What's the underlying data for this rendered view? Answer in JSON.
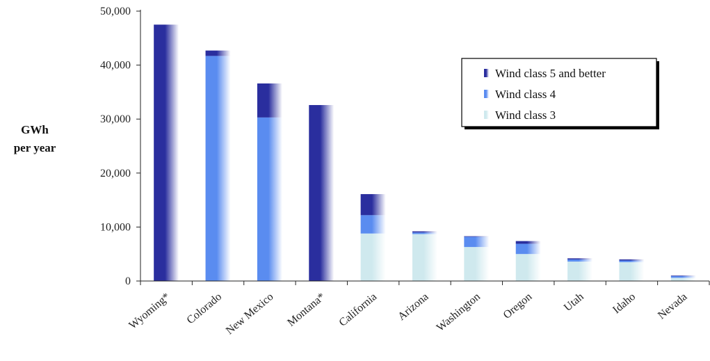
{
  "chart_data": {
    "type": "bar",
    "stacked": true,
    "ylabel_line1": "GWh",
    "ylabel_line2": "per year",
    "ylim": [
      0,
      50000
    ],
    "yticks": [
      "0",
      "10,000",
      "20,000",
      "30,000",
      "40,000",
      "50,000"
    ],
    "ytick_values": [
      0,
      10000,
      20000,
      30000,
      40000,
      50000
    ],
    "categories": [
      "Wyoming*",
      "Colorado",
      "New Mexico",
      "Montana*",
      "California",
      "Arizona",
      "Washington",
      "Oregon",
      "Utah",
      "Idaho",
      "Nevada"
    ],
    "series": [
      {
        "name": "Wind class 3",
        "color": "#cfe9ee",
        "values": [
          0,
          0,
          0,
          0,
          8800,
          8700,
          6300,
          5000,
          3600,
          3500,
          600
        ]
      },
      {
        "name": "Wind class 4",
        "color": "#5a8cf0",
        "values": [
          0,
          41700,
          30300,
          0,
          3400,
          300,
          1900,
          1900,
          400,
          300,
          300
        ]
      },
      {
        "name": "Wind class 5 and better",
        "color": "#2a2e9e",
        "values": [
          47500,
          1000,
          6300,
          32600,
          3900,
          200,
          100,
          500,
          200,
          200,
          100
        ]
      }
    ],
    "legend_order": [
      "Wind class 5 and better",
      "Wind class 4",
      "Wind class 3"
    ],
    "legend_position": "top-right"
  }
}
